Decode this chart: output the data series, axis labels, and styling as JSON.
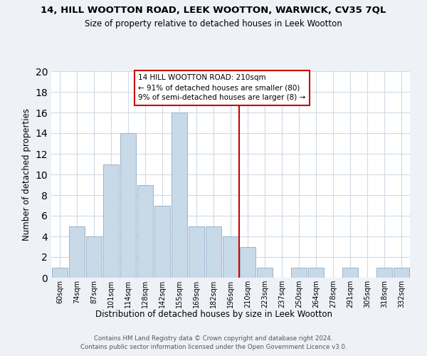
{
  "title": "14, HILL WOOTTON ROAD, LEEK WOOTTON, WARWICK, CV35 7QL",
  "subtitle": "Size of property relative to detached houses in Leek Wootton",
  "xlabel": "Distribution of detached houses by size in Leek Wootton",
  "ylabel": "Number of detached properties",
  "bin_labels": [
    "60sqm",
    "74sqm",
    "87sqm",
    "101sqm",
    "114sqm",
    "128sqm",
    "142sqm",
    "155sqm",
    "169sqm",
    "182sqm",
    "196sqm",
    "210sqm",
    "223sqm",
    "237sqm",
    "250sqm",
    "264sqm",
    "278sqm",
    "291sqm",
    "305sqm",
    "318sqm",
    "332sqm"
  ],
  "bar_heights": [
    1,
    5,
    4,
    11,
    14,
    9,
    7,
    16,
    5,
    5,
    4,
    3,
    1,
    0,
    1,
    1,
    0,
    1,
    0,
    1,
    1
  ],
  "bar_color": "#c8d9e8",
  "bar_edge_color": "#9ab4cc",
  "vline_x_index": 11,
  "vline_color": "#cc0000",
  "annotation_title": "14 HILL WOOTTON ROAD: 210sqm",
  "annotation_line1": "← 91% of detached houses are smaller (80)",
  "annotation_line2": "9% of semi-detached houses are larger (8) →",
  "ylim": [
    0,
    20
  ],
  "yticks": [
    0,
    2,
    4,
    6,
    8,
    10,
    12,
    14,
    16,
    18,
    20
  ],
  "footer1": "Contains HM Land Registry data © Crown copyright and database right 2024.",
  "footer2": "Contains public sector information licensed under the Open Government Licence v3.0.",
  "bg_color": "#eef2f7",
  "plot_bg_color": "#ffffff",
  "grid_color": "#d0dae4"
}
